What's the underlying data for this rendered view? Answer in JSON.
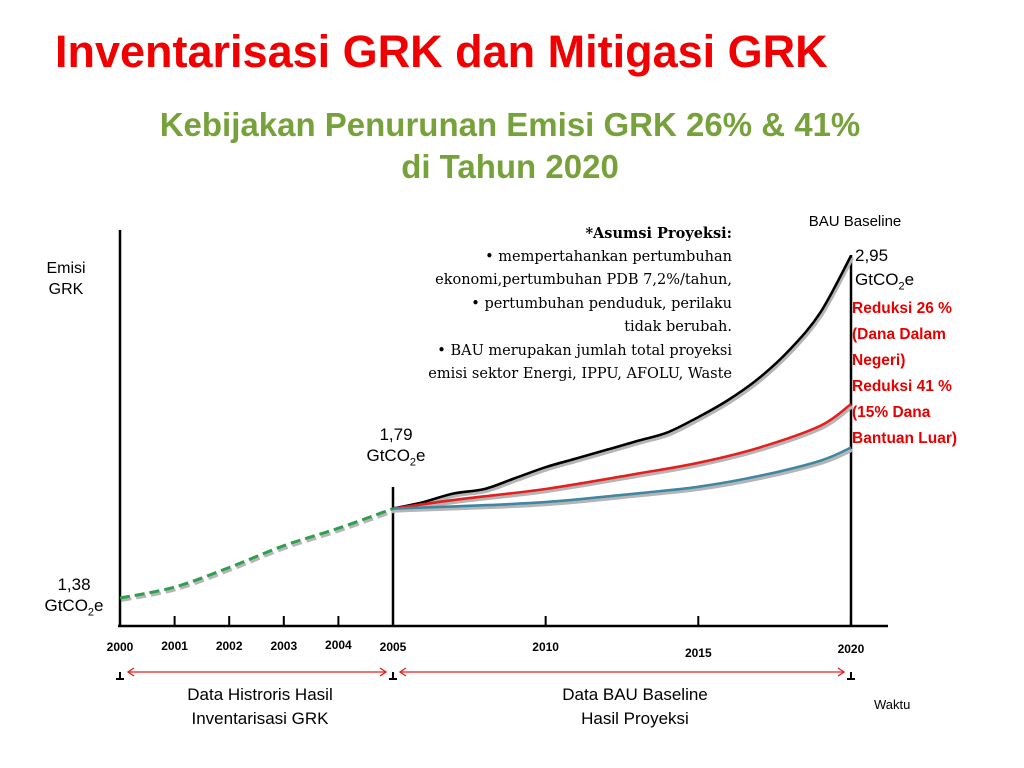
{
  "title": "Inventarisasi GRK dan Mitigasi GRK",
  "subtitle_line1": "Kebijakan Penurunan Emisi GRK 26% & 41%",
  "subtitle_line2": "di Tahun 2020",
  "assumptions": {
    "heading": "*Asumsi Proyeksi:",
    "lines": [
      "•  mempertahankan pertumbuhan",
      "ekonomi,pertumbuhan PDB 7,2%/tahun,",
      "•  pertumbuhan penduduk, perilaku",
      "tidak berubah.",
      "•  BAU merupakan jumlah total proyeksi",
      "emisi sektor Energi, IPPU, AFOLU, Waste"
    ]
  },
  "labels": {
    "y_axis_1": "Emisi",
    "y_axis_2": "GRK",
    "x_axis": "Waktu",
    "bau_baseline": "BAU Baseline",
    "v2000_num": "1,38",
    "v2005_num": "1,79",
    "v2020_num": "2,95",
    "unit_pre": "GtCO",
    "unit_sub": "2",
    "unit_post": "e",
    "red_lines": [
      "Reduksi 26 %",
      "(Dana Dalam",
      "Negeri)",
      "Reduksi 41 %",
      "(15% Dana",
      "Bantuan Luar)"
    ],
    "caption_hist_1": "Data Histroris Hasil",
    "caption_hist_2": "Inventarisasi GRK",
    "caption_bau_1": "Data BAU Baseline",
    "caption_bau_2": "Hasil Proyeksi"
  },
  "colors": {
    "title": "#f00000",
    "subtitle": "#77a13b",
    "historical": "#2e9e4f",
    "bau": "#000000",
    "reduction26": "#e32020",
    "reduction41": "#3f86a0",
    "arrow": "#e32020"
  },
  "chart_data": {
    "type": "line",
    "x_ticks": [
      "2000",
      "2001",
      "2002",
      "2003",
      "2004",
      "2005",
      "2010",
      "2015",
      "2020"
    ],
    "xlabel": "Waktu",
    "ylabel": "Emisi GRK",
    "series": [
      {
        "name": "Data Histroris Hasil Inventarisasi GRK",
        "style": "dashed",
        "x": [
          2000,
          2001,
          2002,
          2003,
          2004,
          2005
        ],
        "y": [
          1.38,
          1.43,
          1.52,
          1.62,
          1.7,
          1.79
        ]
      },
      {
        "name": "BAU Baseline",
        "x": [
          2005,
          2006,
          2007,
          2008,
          2009,
          2010,
          2011,
          2012,
          2013,
          2014,
          2015,
          2016,
          2017,
          2018,
          2019,
          2020
        ],
        "y": [
          1.79,
          1.82,
          1.86,
          1.88,
          1.93,
          1.98,
          2.02,
          2.06,
          2.1,
          2.14,
          2.21,
          2.29,
          2.39,
          2.52,
          2.69,
          2.95
        ]
      },
      {
        "name": "Reduksi 26 %",
        "x": [
          2005,
          2007,
          2010,
          2013,
          2015,
          2017,
          2019,
          2020
        ],
        "y": [
          1.79,
          1.83,
          1.88,
          1.95,
          2.0,
          2.07,
          2.17,
          2.27
        ]
      },
      {
        "name": "Reduksi 41 %",
        "x": [
          2005,
          2007,
          2010,
          2013,
          2015,
          2017,
          2019,
          2020
        ],
        "y": [
          1.79,
          1.8,
          1.82,
          1.86,
          1.89,
          1.94,
          2.01,
          2.07
        ]
      }
    ],
    "annotations": [
      "1,38 GtCO2e",
      "1,79 GtCO2e",
      "2,95 GtCO2e"
    ]
  }
}
